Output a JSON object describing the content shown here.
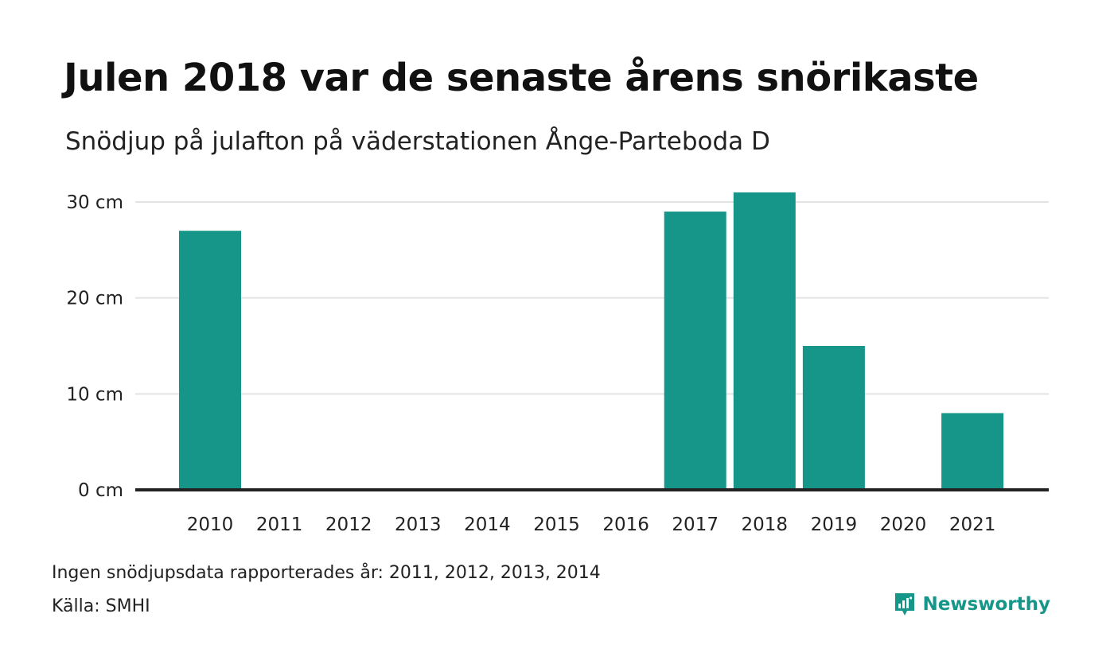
{
  "title": "Julen 2018 var de senaste årens snörikaste",
  "subtitle": "Snödjup på julafton på väderstationen Ånge-Parteboda D",
  "note": "Ingen snödjupsdata rapporterades år: 2011, 2012, 2013, 2014",
  "source": "Källa: SMHI",
  "brand": {
    "name": "Newsworthy",
    "icon": "newsworthy-logo-icon",
    "color": "#159689"
  },
  "colors": {
    "bar": "#159689",
    "grid": "#e3e3e3",
    "baseline": "#222222"
  },
  "chart_data": {
    "type": "bar",
    "categories": [
      "2010",
      "2011",
      "2012",
      "2013",
      "2014",
      "2015",
      "2016",
      "2017",
      "2018",
      "2019",
      "2020",
      "2021"
    ],
    "values": [
      27,
      null,
      null,
      null,
      null,
      0,
      0,
      29,
      31,
      15,
      0,
      8
    ],
    "unit": "cm",
    "yticks": [
      0,
      10,
      20,
      30
    ],
    "ytick_labels": [
      "0 cm",
      "10 cm",
      "20 cm",
      "30 cm"
    ],
    "ylim": [
      0,
      30
    ],
    "grid": true,
    "xlabel": "",
    "ylabel": ""
  }
}
